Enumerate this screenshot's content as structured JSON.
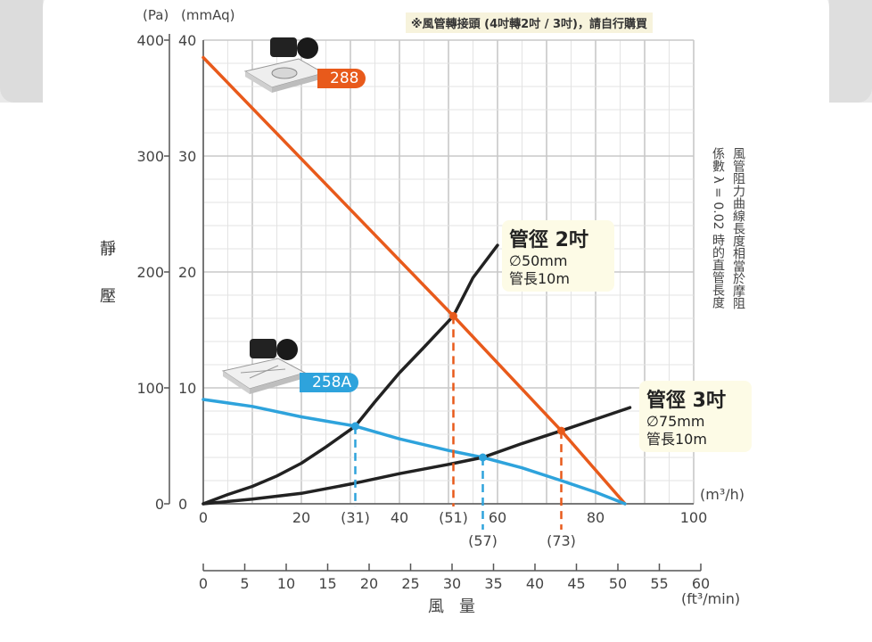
{
  "notes": {
    "top_note": "※風管轉接頭 (4吋轉2吋 / 3吋)，請自行購買",
    "side_note_line1": "風管阻力曲線長度相當於摩阻",
    "side_note_line2": "係數 λ = 0.02 時的直管長度"
  },
  "axis_labels": {
    "pa_unit": "(Pa)",
    "mmaq_unit": "(mmAq)",
    "static_pressure_1": "靜",
    "static_pressure_2": "壓",
    "airflow_1": "風",
    "airflow_2": "量",
    "m3h_unit": "(m³/h)",
    "ft3min_unit": "(ft³/min)"
  },
  "callouts": {
    "pipe2": {
      "title": "管徑 2吋",
      "diameter": "∅50mm",
      "length": "管長10m"
    },
    "pipe3": {
      "title": "管徑 3吋",
      "diameter": "∅75mm",
      "length": "管長10m"
    }
  },
  "models": {
    "m288": {
      "label": "288",
      "color": "#e85a1b"
    },
    "m258a": {
      "label": "258A",
      "color": "#2ea3dc"
    }
  },
  "chart_data": {
    "type": "line",
    "x_unit": "m³/h",
    "xlim": [
      0,
      100
    ],
    "ylim_pa": [
      0,
      400
    ],
    "ylim_mmaq": [
      0,
      40
    ],
    "x_ticks_m3h": [
      "0",
      "20",
      "40",
      "60",
      "80",
      "100"
    ],
    "x_ticks_ft3min": [
      "0",
      "5",
      "10",
      "15",
      "20",
      "25",
      "30",
      "35",
      "40",
      "45",
      "50",
      "55",
      "60"
    ],
    "y_ticks_pa": [
      "0",
      "100",
      "200",
      "300",
      "400"
    ],
    "y_ticks_mmaq": [
      "0",
      "10",
      "20",
      "30",
      "40"
    ],
    "marker_labels": [
      "(31)",
      "(51)",
      "(57)",
      "(73)"
    ],
    "series": [
      {
        "name": "288",
        "color": "#e85a1b",
        "points": [
          [
            0,
            385
          ],
          [
            51,
            162
          ],
          [
            73,
            63
          ],
          [
            86,
            0
          ]
        ]
      },
      {
        "name": "258A",
        "color": "#2ea3dc",
        "points": [
          [
            0,
            90
          ],
          [
            10,
            84
          ],
          [
            20,
            75
          ],
          [
            31,
            67
          ],
          [
            40,
            56
          ],
          [
            50,
            46
          ],
          [
            57,
            40
          ],
          [
            65,
            31
          ],
          [
            73,
            20
          ],
          [
            80,
            10
          ],
          [
            86,
            0
          ]
        ]
      },
      {
        "name": "管徑 2吋",
        "color": "#222222",
        "points": [
          [
            0,
            0
          ],
          [
            5,
            8
          ],
          [
            10,
            15
          ],
          [
            15,
            24
          ],
          [
            20,
            35
          ],
          [
            25,
            49
          ],
          [
            31,
            67
          ],
          [
            35,
            88
          ],
          [
            40,
            113
          ],
          [
            45,
            135
          ],
          [
            51,
            162
          ],
          [
            55,
            195
          ],
          [
            60,
            223
          ]
        ]
      },
      {
        "name": "管徑 3吋",
        "color": "#222222",
        "points": [
          [
            0,
            0
          ],
          [
            10,
            4
          ],
          [
            20,
            9
          ],
          [
            30,
            17
          ],
          [
            40,
            26
          ],
          [
            50,
            34
          ],
          [
            57,
            40
          ],
          [
            65,
            52
          ],
          [
            73,
            63
          ],
          [
            80,
            73
          ],
          [
            87,
            83
          ]
        ]
      }
    ],
    "intersections": [
      {
        "label": "(31)",
        "x": 31,
        "y": 67,
        "color": "#2ea3dc"
      },
      {
        "label": "(51)",
        "x": 51,
        "y": 162,
        "color": "#e85a1b"
      },
      {
        "label": "(57)",
        "x": 57,
        "y": 40,
        "color": "#2ea3dc"
      },
      {
        "label": "(73)",
        "x": 73,
        "y": 63,
        "color": "#e85a1b"
      }
    ]
  }
}
